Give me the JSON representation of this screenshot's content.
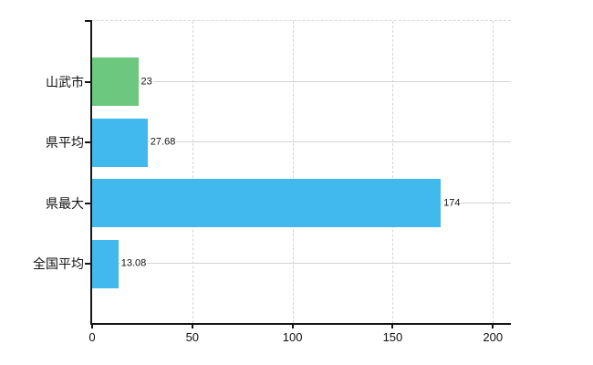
{
  "chart_data": {
    "type": "bar",
    "orientation": "horizontal",
    "title": "",
    "categories": [
      "山武市",
      "県平均",
      "県最大",
      "全国平均"
    ],
    "values": [
      23,
      27.68,
      174,
      13.08
    ],
    "value_labels": [
      "23",
      "27.68",
      "174",
      "13.08"
    ],
    "bar_colors": [
      "#6CC87E",
      "#41B9EE",
      "#41B9EE",
      "#41B9EE"
    ],
    "x_ticks": [
      0,
      50,
      100,
      150,
      200
    ],
    "x_tick_labels": [
      "0",
      "50",
      "100",
      "150",
      "200"
    ],
    "xlim": [
      0,
      209
    ],
    "grid": true,
    "legend": null
  },
  "colors": {
    "bar_highlight": "#6CC87E",
    "bar_default": "#41B9EE",
    "gridline": "#D4D4D4",
    "axis": "#151515",
    "background": "#FFFFFF",
    "label_text": "#111111"
  }
}
